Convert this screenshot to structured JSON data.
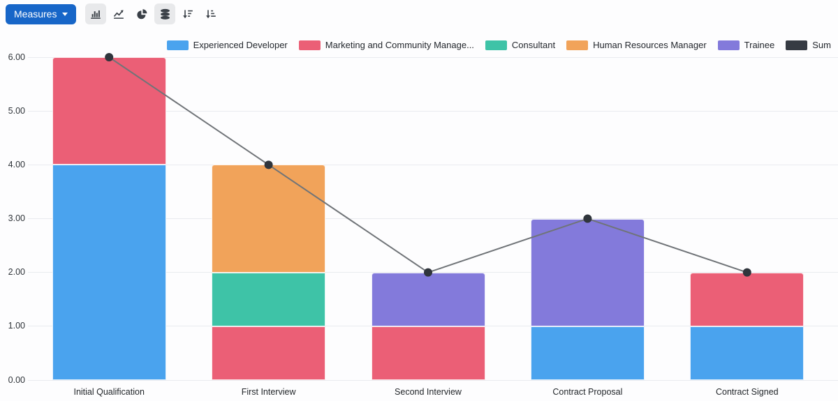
{
  "toolbar": {
    "measures_button": {
      "label": "Measures"
    },
    "view_buttons": [
      {
        "icon": "bar-chart-icon",
        "active": true
      },
      {
        "icon": "line-chart-icon",
        "active": false
      },
      {
        "icon": "pie-chart-icon",
        "active": false
      },
      {
        "icon": "stacked-icon",
        "active": true
      },
      {
        "icon": "sort-descending-icon",
        "active": false
      },
      {
        "icon": "sort-ascending-icon",
        "active": false
      }
    ]
  },
  "legend": {
    "items": [
      {
        "label": "Experienced Developer",
        "color": "#4AA3EE"
      },
      {
        "label": "Marketing and Community Manage...",
        "color": "#EB5F76"
      },
      {
        "label": "Consultant",
        "color": "#3EC3A7"
      },
      {
        "label": "Human Resources Manager",
        "color": "#F1A35A"
      },
      {
        "label": "Trainee",
        "color": "#837ADB"
      },
      {
        "label": "Sum",
        "color": "#363B43"
      }
    ]
  },
  "chart_data": {
    "type": "bar",
    "stacked": true,
    "grid": true,
    "legend_position": "top-right",
    "categories": [
      "Initial Qualification",
      "First Interview",
      "Second Interview",
      "Contract Proposal",
      "Contract Signed"
    ],
    "series": [
      {
        "name": "Experienced Developer",
        "color": "#4AA3EE",
        "values": [
          4,
          0,
          0,
          1,
          1
        ]
      },
      {
        "name": "Marketing and Community Manage...",
        "color": "#EB5F76",
        "values": [
          2,
          1,
          1,
          0,
          1
        ]
      },
      {
        "name": "Consultant",
        "color": "#3EC3A7",
        "values": [
          0,
          1,
          0,
          0,
          0
        ]
      },
      {
        "name": "Human Resources Manager",
        "color": "#F1A35A",
        "values": [
          0,
          2,
          0,
          0,
          0
        ]
      },
      {
        "name": "Trainee",
        "color": "#837ADB",
        "values": [
          0,
          0,
          1,
          2,
          0
        ]
      }
    ],
    "line_series": {
      "name": "Sum",
      "values": [
        6,
        4,
        2,
        3,
        2
      ],
      "line_color": "#707478",
      "point_color": "#30353C"
    },
    "ylim": [
      0,
      6
    ],
    "ytick_labels": [
      "0.00",
      "1.00",
      "2.00",
      "3.00",
      "4.00",
      "5.00",
      "6.00"
    ],
    "xlabel": "",
    "ylabel": ""
  }
}
